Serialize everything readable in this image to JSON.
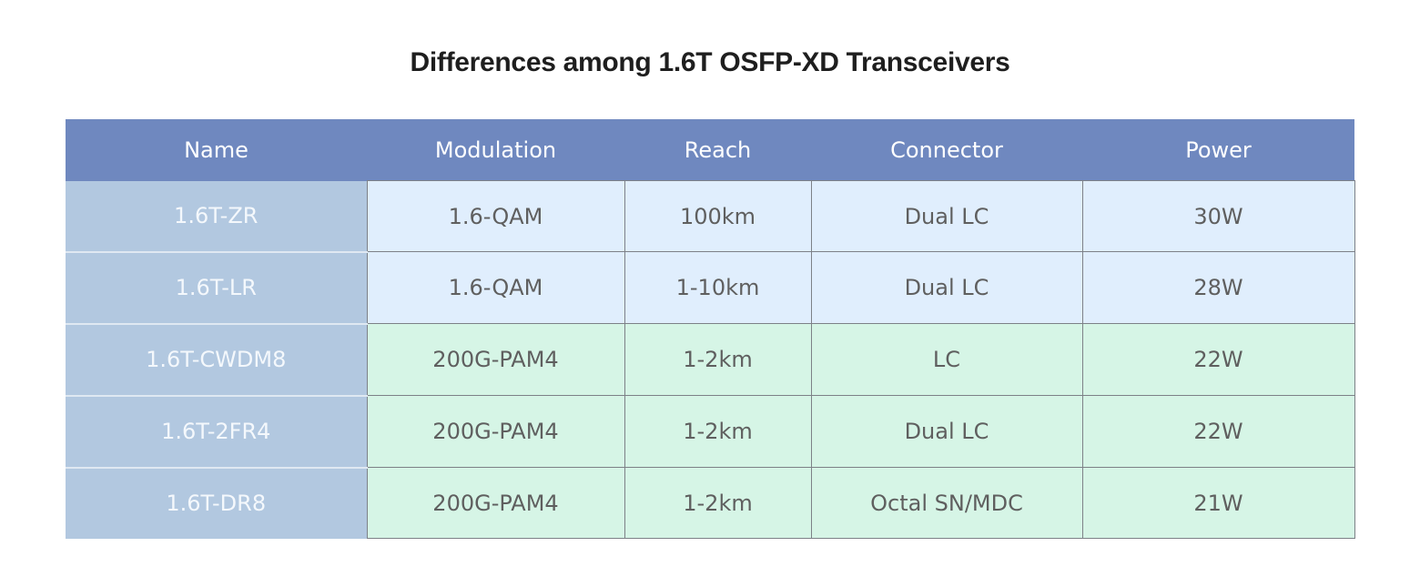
{
  "title": "Differences among 1.6T OSFP-XD Transceivers",
  "table": {
    "headers": {
      "name": "Name",
      "modulation": "Modulation",
      "reach": "Reach",
      "connector": "Connector",
      "power": "Power"
    },
    "rows": [
      {
        "name": "1.6T-ZR",
        "modulation": "1.6-QAM",
        "reach": "100km",
        "connector": "Dual LC",
        "power": "30W"
      },
      {
        "name": "1.6T-LR",
        "modulation": "1.6-QAM",
        "reach": "1-10km",
        "connector": "Dual LC",
        "power": "28W"
      },
      {
        "name": "1.6T-CWDM8",
        "modulation": "200G-PAM4",
        "reach": "1-2km",
        "connector": "LC",
        "power": "22W"
      },
      {
        "name": "1.6T-2FR4",
        "modulation": "200G-PAM4",
        "reach": "1-2km",
        "connector": "Dual LC",
        "power": "22W"
      },
      {
        "name": "1.6T-DR8",
        "modulation": "200G-PAM4",
        "reach": "1-2km",
        "connector": "Octal SN/MDC",
        "power": "21W"
      }
    ]
  },
  "colors": {
    "header_bg": "#6f88bf",
    "name_col_bg": "#b2c8e0",
    "qam_row_bg": "#e0eefd",
    "pam_row_bg": "#d6f5e6",
    "cell_text": "#5f5f5f"
  }
}
